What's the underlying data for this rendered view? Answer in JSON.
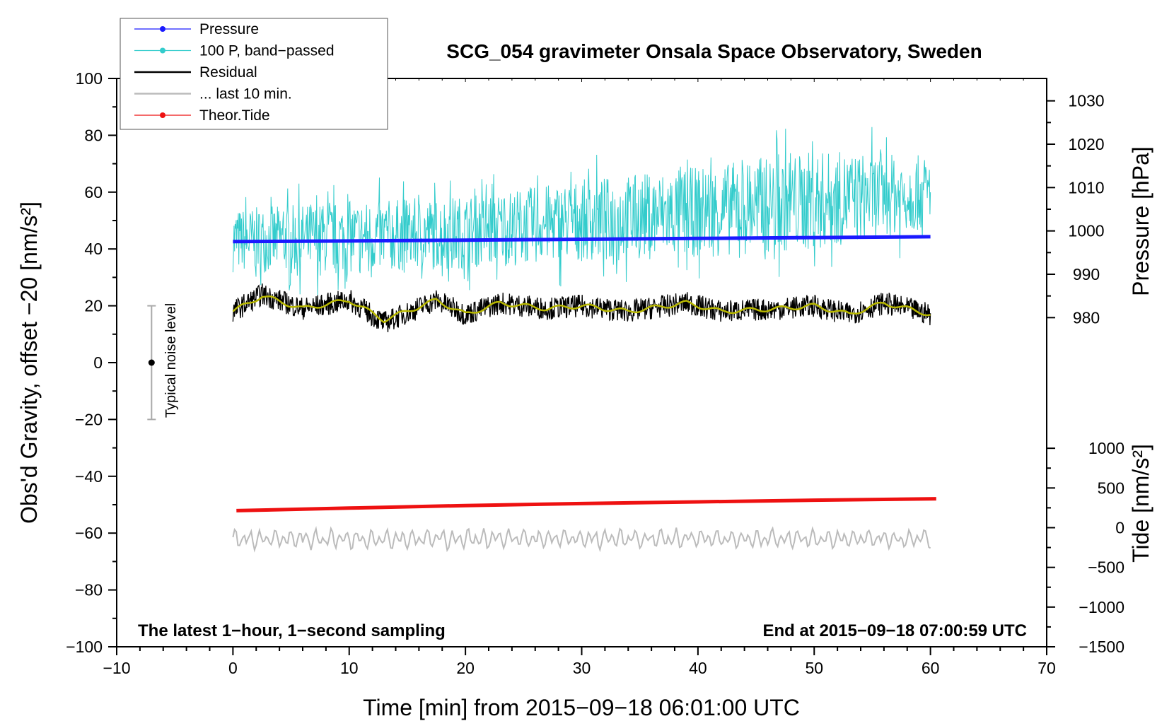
{
  "chart_data": {
    "type": "line",
    "title": "SCG_054 gravimeter Onsala Space Observatory, Sweden",
    "xlabel": "Time [min] from 2015−09−18 06:01:00 UTC",
    "ylabel_left": "Obs'd Gravity, offset −20 [nm/s²]",
    "ylabel_pressure": "Pressure [hPa]",
    "ylabel_tide": "Tide [nm/s²]",
    "xlim": [
      -10,
      70
    ],
    "ylim": [
      -100,
      100
    ],
    "pressure_lim": [
      975,
      1035
    ],
    "tide_lim": [
      -1500,
      1500
    ],
    "x_ticks": [
      -10,
      0,
      10,
      20,
      30,
      40,
      50,
      60,
      70
    ],
    "x_tick_labels": [
      "−10",
      "0",
      "10",
      "20",
      "30",
      "40",
      "50",
      "60",
      "70"
    ],
    "y_ticks": [
      100,
      80,
      60,
      40,
      20,
      0,
      -20,
      -40,
      -60,
      -80,
      -100
    ],
    "y_tick_labels": [
      "100",
      "80",
      "60",
      "40",
      "20",
      "0",
      "−20",
      "−40",
      "−60",
      "−80",
      "−100"
    ],
    "pressure_ticks": [
      980,
      990,
      1000,
      1010,
      1020,
      1030
    ],
    "pressure_tick_labels": [
      "980",
      "990",
      "1000",
      "1010",
      "1020",
      "1030"
    ],
    "tide_ticks": [
      1000,
      500,
      0,
      -500,
      -1000,
      -1500
    ],
    "tide_tick_labels": [
      "1000",
      "500",
      "0",
      "−500",
      "−1000",
      "−1500"
    ],
    "legend": [
      {
        "label": "Pressure",
        "color": "#1a1aff",
        "marker": true
      },
      {
        "label": "100 P, band−passed",
        "color": "#33cccc",
        "marker": true
      },
      {
        "label": "Residual",
        "color": "#000000",
        "marker": false
      },
      {
        "label": "... last 10 min.",
        "color": "#bbbbbb",
        "marker": false
      },
      {
        "label": "Theor.Tide",
        "color": "#ee1111",
        "marker": true
      }
    ],
    "series": [
      {
        "name": "Pressure",
        "color": "#1a1aff",
        "x": [
          0,
          10,
          20,
          30,
          40,
          50,
          60
        ],
        "y": [
          42.6,
          42.8,
          43.1,
          43.4,
          43.7,
          44.0,
          44.3
        ]
      },
      {
        "name": "100 P, band−passed",
        "color": "#33cccc",
        "x": [
          0,
          10,
          20,
          30,
          40,
          50,
          60
        ],
        "y": [
          43,
          44,
          46,
          50,
          53,
          57,
          60
        ],
        "noise_amplitude": [
          14,
          16,
          16,
          18,
          20,
          22,
          16
        ]
      },
      {
        "name": "Residual",
        "color": "#000000",
        "x": [
          0,
          2.5,
          6,
          10,
          13,
          17.5,
          20,
          23,
          27,
          30,
          34,
          39,
          42,
          47,
          50,
          53,
          56,
          60
        ],
        "y": [
          18,
          24,
          19,
          22,
          14,
          22,
          17,
          21,
          19,
          20,
          18,
          21,
          18,
          19,
          20,
          17,
          21,
          17
        ],
        "noise_amplitude": 4
      },
      {
        "name": "Yellow smoothed",
        "color": "#b8b800",
        "x": [
          0,
          2.5,
          6,
          10,
          13,
          17.5,
          20,
          23,
          27,
          30,
          34,
          39,
          42,
          47,
          50,
          53,
          56,
          60
        ],
        "y": [
          18,
          23.5,
          19,
          22,
          15,
          22,
          17,
          21,
          19,
          20,
          18,
          21,
          18,
          19,
          20,
          17,
          21,
          17
        ]
      },
      {
        "name": "... last 10 min.",
        "color": "#bbbbbb",
        "x_start": 0,
        "x_end": 60,
        "mean": -62,
        "amplitude": 3.5
      },
      {
        "name": "Theor.Tide",
        "color": "#ee1111",
        "x": [
          0.3,
          10,
          20,
          30,
          40,
          50,
          60.5
        ],
        "y": [
          -52.1,
          -51.2,
          -50.3,
          -49.6,
          -49.0,
          -48.4,
          -47.9
        ]
      }
    ],
    "noise_bar": {
      "label": "Typical noise level",
      "x": -7,
      "center": 0,
      "low": -20,
      "high": 20
    },
    "annotation_left": "The latest 1−hour, 1−second sampling",
    "annotation_right": "End at 2015−09−18 07:00:59 UTC"
  }
}
